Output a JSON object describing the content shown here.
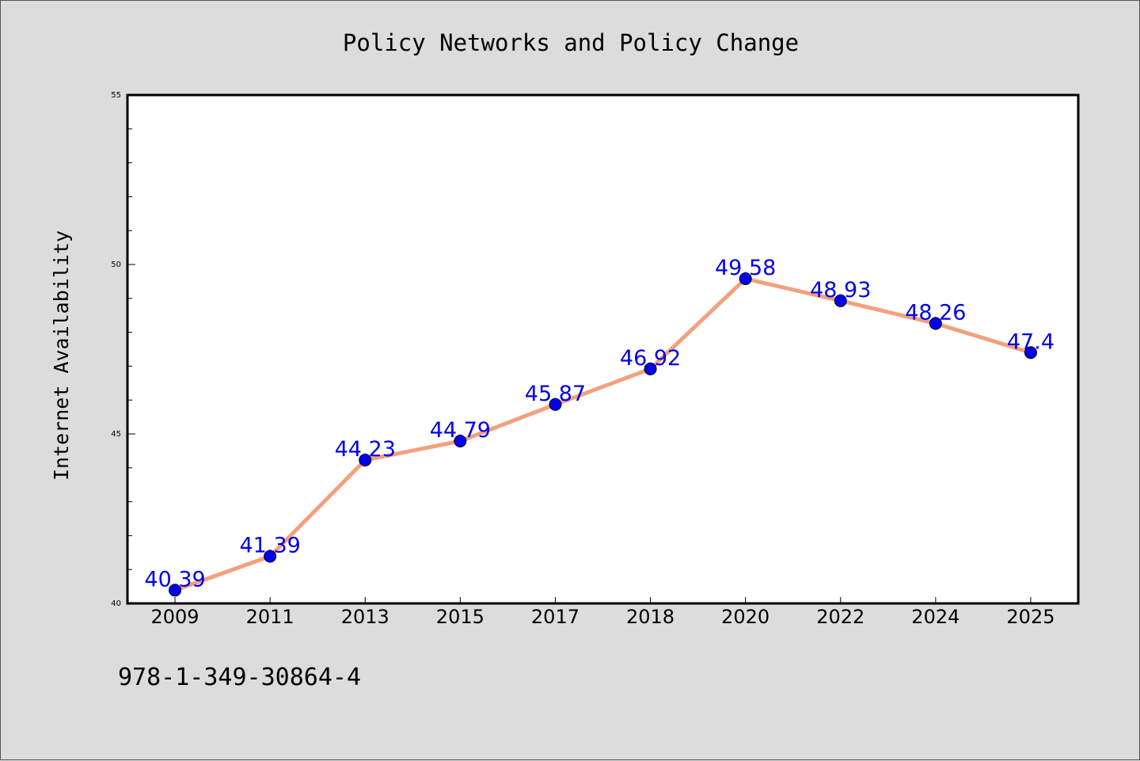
{
  "chart_data": {
    "type": "line",
    "title": "Policy Networks and Policy Change",
    "xlabel": "",
    "ylabel": "Internet Availability",
    "categories": [
      "2009",
      "2011",
      "2013",
      "2015",
      "2017",
      "2018",
      "2020",
      "2022",
      "2024",
      "2025"
    ],
    "series": [
      {
        "values": [
          40.39,
          41.39,
          44.23,
          44.79,
          45.87,
          46.92,
          49.58,
          48.93,
          48.26,
          47.4
        ],
        "data_labels": [
          "40.39",
          "41.39",
          "44.23",
          "44.79",
          "45.87",
          "46.92",
          "49.58",
          "48.93",
          "48.26",
          "47.4"
        ],
        "line_color": "#f4a07e",
        "marker_color": "#0000ee",
        "label_color": "#0000ee"
      }
    ],
    "ylim": [
      40,
      55
    ],
    "yticks": [
      "40",
      "45",
      "50",
      "55"
    ],
    "grid": false,
    "legend": "none"
  },
  "footer": {
    "isbn": "978-1-349-30864-4"
  },
  "colors": {
    "background": "#dcdcdc",
    "plot_background": "#ffffff",
    "axes": "#000000"
  }
}
